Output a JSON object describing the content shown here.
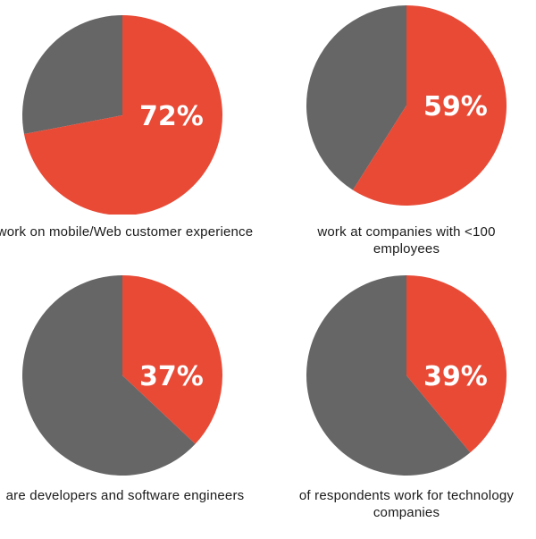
{
  "colors": {
    "highlight": "#E84A36",
    "rest": "#666666"
  },
  "chart_data": [
    {
      "type": "pie",
      "values": [
        72,
        28
      ],
      "label": "72%",
      "caption": "work on mobile/Web customer experience"
    },
    {
      "type": "pie",
      "values": [
        59,
        41
      ],
      "label": "59%",
      "caption": "work at companies with <100 employees"
    },
    {
      "type": "pie",
      "values": [
        37,
        63
      ],
      "label": "37%",
      "caption": "are developers and software engineers"
    },
    {
      "type": "pie",
      "values": [
        39,
        61
      ],
      "label": "39%",
      "caption": "of respondents work for technology companies"
    }
  ]
}
